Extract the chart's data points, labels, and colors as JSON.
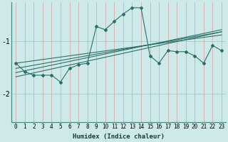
{
  "xlabel": "Humidex (Indice chaleur)",
  "background_color": "#ceeae8",
  "vgrid_color": "#d4a0a0",
  "hgrid_color": "#a8ccc8",
  "line_color": "#2a7068",
  "xlim": [
    -0.5,
    23.5
  ],
  "ylim": [
    -2.55,
    -0.25
  ],
  "yticks": [
    -2,
    -1
  ],
  "xticks": [
    0,
    1,
    2,
    3,
    4,
    5,
    6,
    7,
    8,
    9,
    10,
    11,
    12,
    13,
    14,
    15,
    16,
    17,
    18,
    19,
    20,
    21,
    22,
    23
  ],
  "main_line_x": [
    0,
    1,
    2,
    3,
    4,
    5,
    6,
    7,
    8,
    9,
    10,
    11,
    12,
    13,
    14,
    15,
    16,
    17,
    18,
    19,
    20,
    21,
    22,
    23
  ],
  "main_line_y": [
    -1.42,
    -1.58,
    -1.65,
    -1.65,
    -1.65,
    -1.78,
    -1.52,
    -1.45,
    -1.42,
    -0.72,
    -0.78,
    -0.62,
    -0.48,
    -0.36,
    -0.36,
    -1.28,
    -1.42,
    -1.18,
    -1.2,
    -1.2,
    -1.28,
    -1.42,
    -1.08,
    -1.18
  ],
  "trend_lines": [
    {
      "x": [
        0,
        23
      ],
      "y": [
        -1.42,
        -0.88
      ]
    },
    {
      "x": [
        0,
        23
      ],
      "y": [
        -1.52,
        -0.82
      ]
    },
    {
      "x": [
        0,
        23
      ],
      "y": [
        -1.6,
        -0.78
      ]
    },
    {
      "x": [
        0,
        23
      ],
      "y": [
        -1.68,
        -0.82
      ]
    }
  ],
  "spine_color": "#3a8878",
  "xlabel_fontsize": 6.5,
  "tick_fontsize": 5.5,
  "ytick_fontsize": 7,
  "lw": 0.8,
  "marker_size": 2.0
}
